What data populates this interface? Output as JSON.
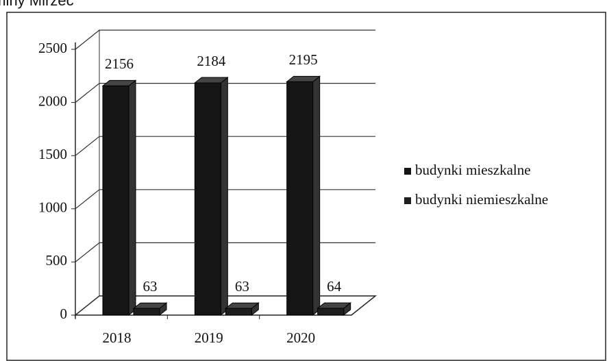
{
  "chart_data": {
    "type": "bar3d",
    "title": "gminy Mirzec",
    "categories": [
      "2018",
      "2019",
      "2020"
    ],
    "series": [
      {
        "name": "budynki mieszkalne",
        "color": "#151515",
        "values": [
          2156,
          2184,
          2195
        ]
      },
      {
        "name": "budynki niemieszkalne",
        "color": "#1e1e1e",
        "values": [
          63,
          63,
          64
        ]
      }
    ],
    "ylim": [
      0,
      2500
    ],
    "yticks": [
      0,
      500,
      1000,
      1500,
      2000,
      2500
    ],
    "grid": true,
    "legend": "right"
  }
}
